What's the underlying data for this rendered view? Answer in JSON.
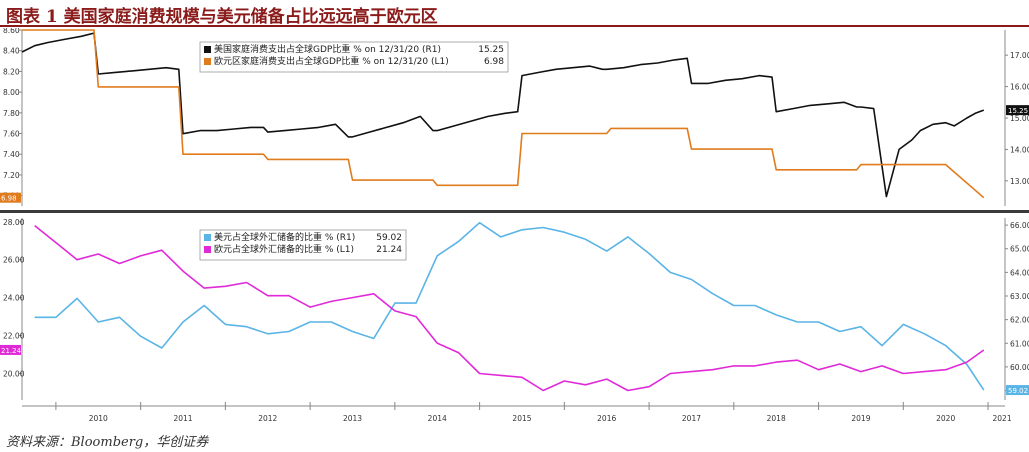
{
  "header": {
    "title": "图表 1 美国家庭消费规模与美元储备占比远远高于欧元区"
  },
  "footer": {
    "source": "资料来源：Bloomberg，华创证券"
  },
  "colors": {
    "us_consumption": "#111111",
    "eu_consumption": "#e07b1e",
    "usd_reserve": "#5ab4e6",
    "eur_reserve": "#e02ad8",
    "title": "#8b1a1a"
  },
  "chart_data": [
    {
      "type": "line",
      "panel": "top",
      "x_ticks": [
        "2010",
        "2011",
        "2012",
        "2013",
        "2014",
        "2015",
        "2016",
        "2017",
        "2018",
        "2019",
        "2020",
        "2021"
      ],
      "left_axis": {
        "ticks": [
          "8.60",
          "8.40",
          "8.20",
          "8.00",
          "7.80",
          "7.60",
          "7.40",
          "7.20",
          "7.00"
        ],
        "range": [
          6.9,
          8.6
        ]
      },
      "right_axis": {
        "ticks": [
          "17.00",
          "16.00",
          "15.00",
          "14.00",
          "13.00"
        ],
        "range": [
          12.2,
          17.8
        ]
      },
      "legend": [
        {
          "label": "美国家庭消费支出占全球GDP比重 % on 12/31/20 (R1)",
          "value": "15.25"
        },
        {
          "label": "欧元区家庭消费支出占全球GDP比重 % on 12/31/20 (L1)",
          "value": "6.98"
        }
      ],
      "last_value_labels": {
        "right": "15.25",
        "left": "6.98"
      },
      "series": [
        {
          "name": "美国家庭消费支出占全球GDP比重 %",
          "axis": "right",
          "x": [
            2009.6,
            2009.75,
            2009.9,
            2010.1,
            2010.3,
            2010.45,
            2010.5,
            2010.7,
            2010.9,
            2011.1,
            2011.3,
            2011.45,
            2011.5,
            2011.7,
            2011.9,
            2012.1,
            2012.3,
            2012.45,
            2012.5,
            2012.7,
            2012.9,
            2013.1,
            2013.3,
            2013.45,
            2013.5,
            2013.7,
            2013.9,
            2014.1,
            2014.3,
            2014.45,
            2014.5,
            2014.7,
            2014.9,
            2015.1,
            2015.3,
            2015.45,
            2015.5,
            2015.7,
            2015.9,
            2016.1,
            2016.3,
            2016.45,
            2016.5,
            2016.7,
            2016.9,
            2017.1,
            2017.3,
            2017.45,
            2017.5,
            2017.7,
            2017.9,
            2018.1,
            2018.3,
            2018.45,
            2018.5,
            2018.7,
            2018.9,
            2019.1,
            2019.3,
            2019.45,
            2019.5,
            2019.65,
            2019.8,
            2019.95,
            2020.1,
            2020.2,
            2020.35,
            2020.5,
            2020.6,
            2020.75,
            2020.85,
            2020.95
          ],
          "values": [
            17.1,
            17.3,
            17.4,
            17.5,
            17.6,
            17.7,
            16.4,
            16.45,
            16.5,
            16.55,
            16.6,
            16.55,
            14.5,
            14.6,
            14.6,
            14.65,
            14.7,
            14.7,
            14.55,
            14.6,
            14.65,
            14.7,
            14.8,
            14.4,
            14.4,
            14.55,
            14.7,
            14.85,
            15.05,
            14.6,
            14.6,
            14.75,
            14.9,
            15.05,
            15.15,
            15.2,
            16.35,
            16.45,
            16.55,
            16.6,
            16.65,
            16.55,
            16.55,
            16.6,
            16.7,
            16.75,
            16.85,
            16.9,
            16.1,
            16.1,
            16.2,
            16.25,
            16.35,
            16.3,
            15.2,
            15.3,
            15.4,
            15.45,
            15.5,
            15.35,
            15.35,
            15.3,
            12.5,
            14.0,
            14.3,
            14.6,
            14.8,
            14.85,
            14.75,
            15.0,
            15.15,
            15.25
          ]
        },
        {
          "name": "欧元区家庭消费支出占全球GDP比重 %",
          "axis": "left",
          "x": [
            2009.6,
            2010.45,
            2010.5,
            2011.45,
            2011.5,
            2012.45,
            2012.5,
            2013.45,
            2013.5,
            2014.45,
            2014.5,
            2015.45,
            2015.5,
            2016.5,
            2016.55,
            2017.45,
            2017.5,
            2018.45,
            2018.5,
            2019.45,
            2019.5,
            2020.45,
            2020.5,
            2020.95
          ],
          "values": [
            8.6,
            8.6,
            8.05,
            8.05,
            7.4,
            7.4,
            7.35,
            7.35,
            7.15,
            7.15,
            7.1,
            7.1,
            7.6,
            7.6,
            7.65,
            7.65,
            7.45,
            7.45,
            7.25,
            7.25,
            7.3,
            7.3,
            7.3,
            6.98
          ]
        }
      ]
    },
    {
      "type": "line",
      "panel": "bottom",
      "x_ticks": [
        "2010",
        "2011",
        "2012",
        "2013",
        "2014",
        "2015",
        "2016",
        "2017",
        "2018",
        "2019",
        "2020",
        "2021"
      ],
      "left_axis": {
        "ticks": [
          "28.00",
          "26.00",
          "24.00",
          "22.00",
          "20.00"
        ],
        "range": [
          18.6,
          28.2
        ]
      },
      "right_axis": {
        "ticks": [
          "66.00",
          "65.00",
          "64.00",
          "63.00",
          "62.00",
          "61.00",
          "60.00",
          "59.00"
        ],
        "range": [
          58.6,
          66.3
        ]
      },
      "legend": [
        {
          "label": "美元占全球外汇储备的比重 % (R1)",
          "value": "59.02"
        },
        {
          "label": "欧元占全球外汇储备的比重 % (L1)",
          "value": "21.24"
        }
      ],
      "last_value_labels": {
        "right": "59.02",
        "left": "21.24"
      },
      "series": [
        {
          "name": "美元占全球外汇储备的比重 %",
          "axis": "right",
          "x": [
            2009.75,
            2010.0,
            2010.25,
            2010.5,
            2010.75,
            2011.0,
            2011.25,
            2011.5,
            2011.75,
            2012.0,
            2012.25,
            2012.5,
            2012.75,
            2013.0,
            2013.25,
            2013.5,
            2013.75,
            2014.0,
            2014.25,
            2014.5,
            2014.75,
            2015.0,
            2015.25,
            2015.5,
            2015.75,
            2016.0,
            2016.25,
            2016.5,
            2016.75,
            2017.0,
            2017.25,
            2017.5,
            2017.75,
            2018.0,
            2018.25,
            2018.5,
            2018.75,
            2019.0,
            2019.25,
            2019.5,
            2019.75,
            2020.0,
            2020.25,
            2020.5,
            2020.75,
            2020.95
          ],
          "values": [
            62.1,
            62.1,
            62.9,
            61.9,
            62.1,
            61.3,
            60.8,
            61.9,
            62.6,
            61.8,
            61.7,
            61.4,
            61.5,
            61.9,
            61.9,
            61.5,
            61.2,
            62.7,
            62.7,
            64.7,
            65.3,
            66.1,
            65.5,
            65.8,
            65.9,
            65.7,
            65.4,
            64.9,
            65.5,
            64.8,
            64.0,
            63.7,
            63.1,
            62.6,
            62.6,
            62.2,
            61.9,
            61.9,
            61.5,
            61.7,
            60.9,
            61.8,
            61.4,
            60.9,
            60.1,
            59.02
          ]
        },
        {
          "name": "欧元占全球外汇储备的比重 %",
          "axis": "left",
          "x": [
            2009.75,
            2010.0,
            2010.25,
            2010.5,
            2010.75,
            2011.0,
            2011.25,
            2011.5,
            2011.75,
            2012.0,
            2012.25,
            2012.5,
            2012.75,
            2013.0,
            2013.25,
            2013.5,
            2013.75,
            2014.0,
            2014.25,
            2014.5,
            2014.75,
            2015.0,
            2015.25,
            2015.5,
            2015.75,
            2016.0,
            2016.25,
            2016.5,
            2016.75,
            2017.0,
            2017.25,
            2017.5,
            2017.75,
            2018.0,
            2018.25,
            2018.5,
            2018.75,
            2019.0,
            2019.25,
            2019.5,
            2019.75,
            2020.0,
            2020.25,
            2020.5,
            2020.75,
            2020.95
          ],
          "values": [
            27.8,
            26.9,
            26.0,
            26.3,
            25.8,
            26.2,
            26.5,
            25.4,
            24.5,
            24.6,
            24.8,
            24.1,
            24.1,
            23.5,
            23.8,
            24.0,
            24.2,
            23.3,
            23.0,
            21.6,
            21.1,
            20.0,
            19.9,
            19.8,
            19.1,
            19.6,
            19.4,
            19.7,
            19.1,
            19.3,
            20.0,
            20.1,
            20.2,
            20.4,
            20.4,
            20.6,
            20.7,
            20.2,
            20.5,
            20.1,
            20.4,
            20.0,
            20.1,
            20.2,
            20.6,
            21.24
          ]
        }
      ]
    }
  ]
}
